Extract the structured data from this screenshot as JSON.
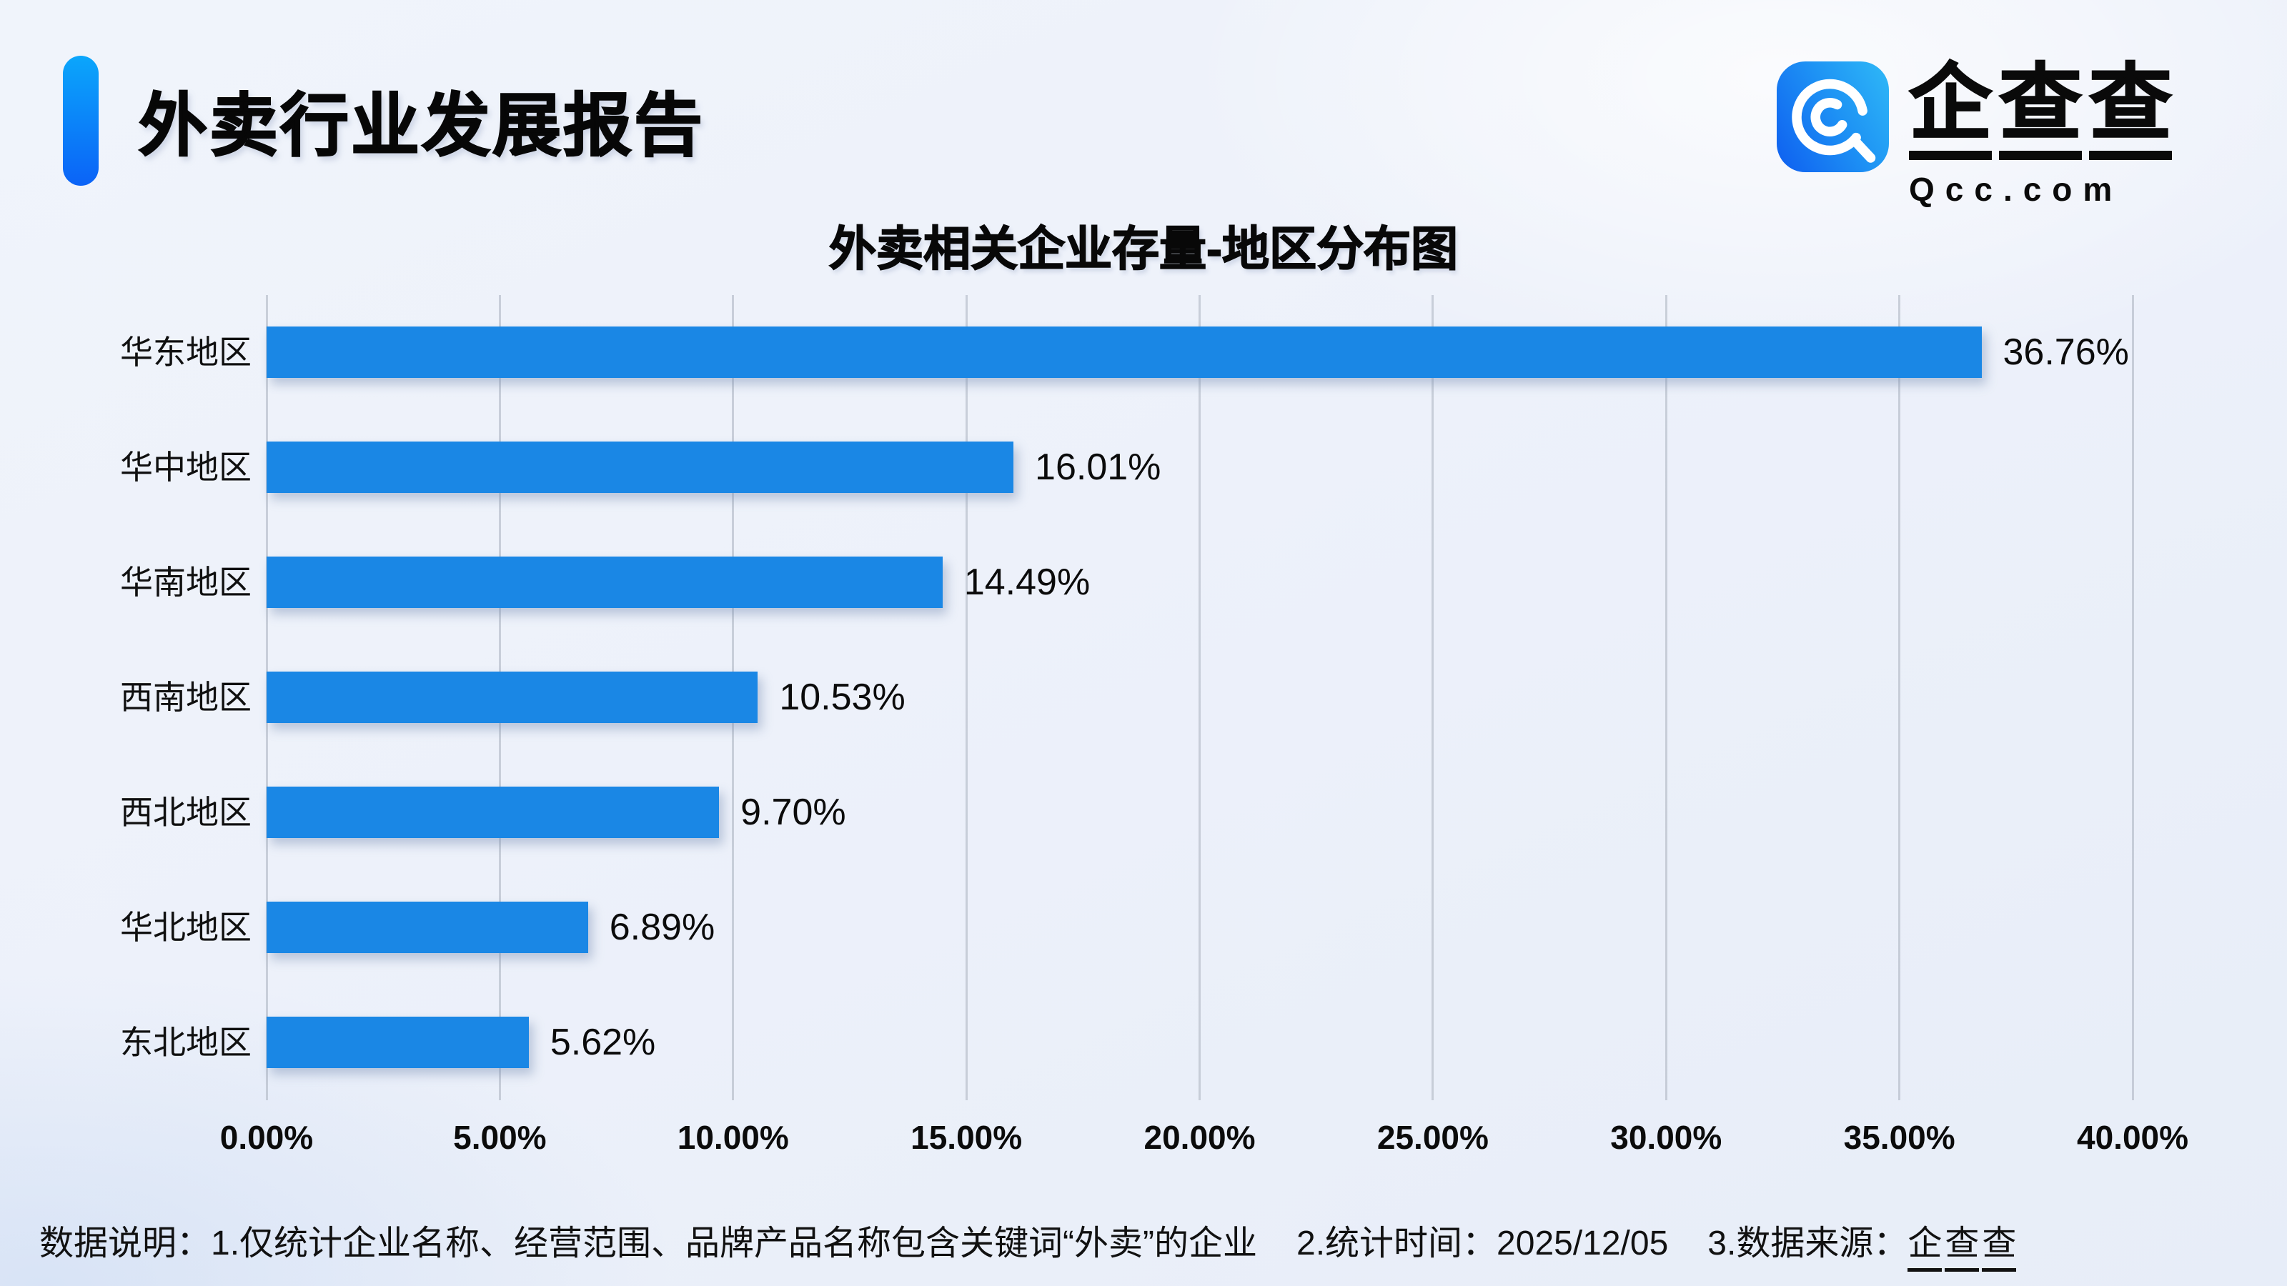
{
  "header": {
    "report_title": "外卖行业发展报告"
  },
  "brand": {
    "name_cn": "企查查",
    "domain": "Qcc.com"
  },
  "chart_data": {
    "type": "bar",
    "orientation": "horizontal",
    "title": "外卖相关企业存量-地区分布图",
    "categories": [
      "华东地区",
      "华中地区",
      "华南地区",
      "西南地区",
      "西北地区",
      "华北地区",
      "东北地区"
    ],
    "values": [
      36.76,
      16.01,
      14.49,
      10.53,
      9.7,
      6.89,
      5.62
    ],
    "value_labels": [
      "36.76%",
      "16.01%",
      "14.49%",
      "10.53%",
      "9.70%",
      "6.89%",
      "5.62%"
    ],
    "x_tick_labels": [
      "0.00%",
      "5.00%",
      "10.00%",
      "15.00%",
      "20.00%",
      "25.00%",
      "30.00%",
      "35.00%",
      "40.00%"
    ],
    "xlim": [
      0,
      40
    ],
    "grid": true,
    "legend": false,
    "bar_color": "#1a87e5"
  },
  "colors": {
    "accent_top": "#0ba6fb",
    "accent_bottom": "#0b63f7",
    "logo_gradient_start": "#0e5ef0",
    "logo_gradient_end": "#2fb9f7",
    "gridline": "#aab0be",
    "background": "#edf1fa",
    "text": "#0d0d0d"
  },
  "footer": {
    "part1": "数据说明：1.仅统计企业名称、经营范围、品牌产品名称包含关键词“外卖”的企业",
    "part2": "2.统计时间：2025/12/05",
    "part3_prefix": "3.数据来源：",
    "part3_brand": "企查查"
  }
}
